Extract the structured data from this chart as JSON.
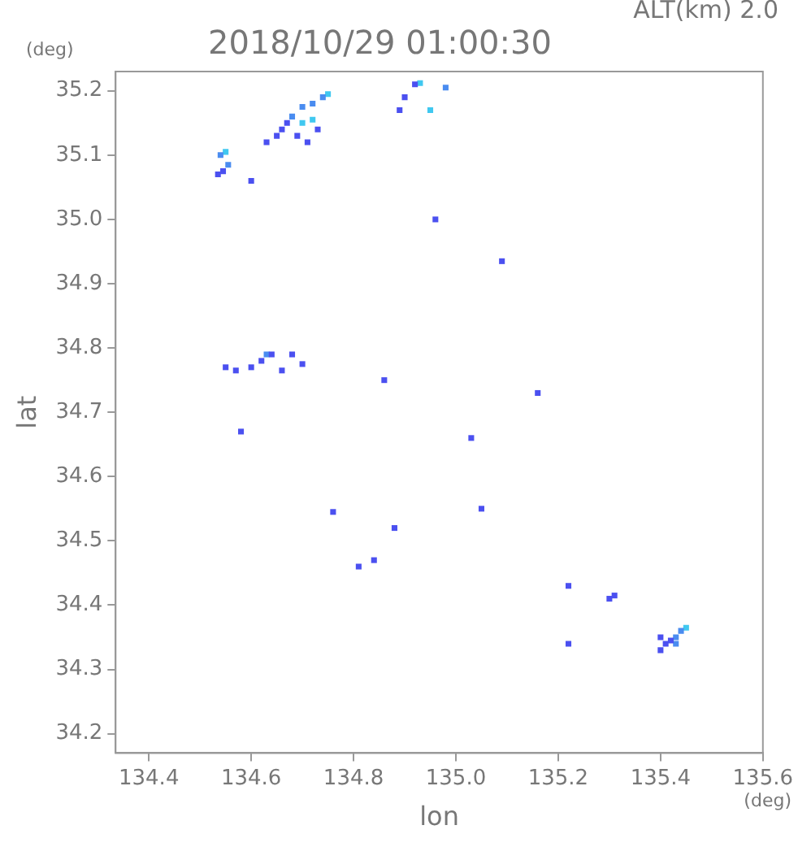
{
  "chart_data": {
    "type": "scatter",
    "title": "2018/10/29 01:00:30",
    "subtitle": "ALT(km) 2.0",
    "xlabel": "lon",
    "ylabel": "lat",
    "annotations": [
      "(deg)",
      "(deg)"
    ],
    "xlim": [
      134.335,
      135.6
    ],
    "ylim": [
      34.17,
      35.23
    ],
    "xticks": [
      134.4,
      134.6,
      134.8,
      {
        "value": 135,
        "label": "135.0"
      },
      135.2,
      135.4,
      135.6
    ],
    "yticks": [
      34.2,
      34.3,
      34.4,
      34.5,
      34.6,
      34.7,
      34.8,
      34.9,
      {
        "value": 35,
        "label": "35.0"
      },
      35.1,
      35.2
    ],
    "grid": false,
    "legend": false,
    "marker": "square",
    "series": [
      {
        "color": "#4b50f0",
        "x": [
          134.535,
          134.545,
          134.63,
          134.65,
          134.66,
          134.67,
          134.69,
          134.71,
          134.73,
          134.6,
          134.92,
          134.9,
          134.89,
          134.96,
          135.09,
          134.55,
          134.57,
          134.6,
          134.62,
          134.64,
          134.66,
          134.7,
          134.68,
          134.58,
          134.86,
          135.16,
          135.03,
          135.05,
          134.76,
          134.88,
          134.84,
          134.81,
          135.22,
          135.22,
          135.3,
          135.31,
          135.4,
          135.41,
          135.42,
          135.4
        ],
        "values": [
          35.07,
          35.075,
          35.12,
          35.13,
          35.14,
          35.15,
          35.13,
          35.12,
          35.14,
          35.06,
          35.21,
          35.19,
          35.17,
          35.0,
          34.935,
          34.77,
          34.765,
          34.77,
          34.78,
          34.79,
          34.765,
          34.775,
          34.79,
          34.67,
          34.75,
          34.73,
          34.66,
          34.55,
          34.545,
          34.52,
          34.47,
          34.46,
          34.43,
          34.34,
          34.41,
          34.415,
          34.33,
          34.34,
          34.345,
          34.35
        ]
      },
      {
        "color": "#4a8cf0",
        "x": [
          134.555,
          134.54,
          134.68,
          134.7,
          134.72,
          134.74,
          134.98,
          134.63,
          135.43,
          135.44,
          135.43
        ],
        "values": [
          35.085,
          35.1,
          35.16,
          35.175,
          35.18,
          35.19,
          35.205,
          34.79,
          34.35,
          34.36,
          34.34
        ]
      },
      {
        "color": "#40c8f0",
        "x": [
          134.55,
          134.75,
          134.7,
          134.72,
          134.93,
          134.95,
          135.45
        ],
        "values": [
          35.105,
          35.195,
          35.15,
          35.155,
          35.212,
          35.17,
          34.365
        ]
      }
    ]
  }
}
